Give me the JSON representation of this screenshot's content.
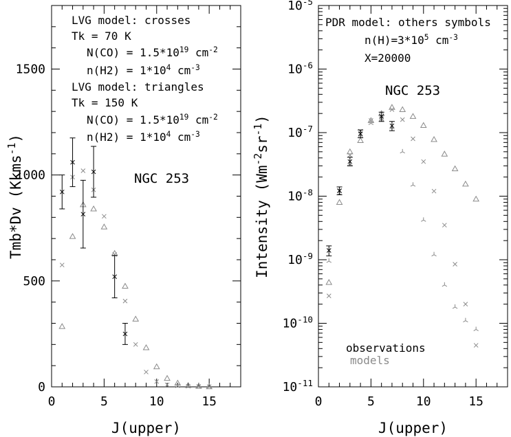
{
  "chart_data": [
    {
      "type": "scatter",
      "panel": "left",
      "xlabel": "J(upper)",
      "ylabel_main": "Tmb*Dv (Kkms",
      "ylabel_sup": "-1",
      "ylabel_end": ")",
      "xlim": [
        0,
        18
      ],
      "ylim": [
        0,
        1800
      ],
      "yscale": "linear",
      "xticks_major": [
        0,
        5,
        10,
        15
      ],
      "xticks_minor": [
        1,
        2,
        3,
        4,
        6,
        7,
        8,
        9,
        11,
        12,
        13,
        14,
        16,
        17
      ],
      "yticks_major": [
        0,
        500,
        1000,
        1500
      ],
      "yticks_minor": [
        100,
        200,
        300,
        400,
        600,
        700,
        800,
        900,
        1100,
        1200,
        1300,
        1400,
        1600,
        1700
      ],
      "xtick_labels": [
        "0",
        "5",
        "10",
        "15"
      ],
      "ytick_labels": [
        "0",
        "500",
        "1000",
        "1500"
      ],
      "annotations": [
        {
          "lines": [
            {
              "t": "LVG model: crosses"
            }
          ]
        },
        {
          "lines": [
            {
              "t": "Tk = 70 K"
            }
          ]
        },
        {
          "lines": [
            {
              "t": "N(CO) = 1.5*10"
            },
            {
              "t": "19",
              "sup": true
            },
            {
              "t": " cm"
            },
            {
              "t": "-2",
              "sup": true
            }
          ]
        },
        {
          "lines": [
            {
              "t": "n(H2) = 1*10"
            },
            {
              "t": "4",
              "sup": true
            },
            {
              "t": " cm"
            },
            {
              "t": "-3",
              "sup": true
            }
          ]
        },
        {
          "lines": [
            {
              "t": "LVG model: triangles"
            }
          ]
        },
        {
          "lines": [
            {
              "t": "Tk = 150 K"
            }
          ]
        },
        {
          "lines": [
            {
              "t": "N(CO) = 1.5*10"
            },
            {
              "t": "19",
              "sup": true
            },
            {
              "t": " cm"
            },
            {
              "t": "-2",
              "sup": true
            }
          ]
        },
        {
          "lines": [
            {
              "t": "n(H2) = 1*10"
            },
            {
              "t": "4",
              "sup": true
            },
            {
              "t": " cm"
            },
            {
              "t": "-3",
              "sup": true
            }
          ]
        }
      ],
      "source_label": "NGC 253",
      "observations": [
        {
          "x": 1,
          "y": 920,
          "err": 80
        },
        {
          "x": 2,
          "y": 1060,
          "err": 115
        },
        {
          "x": 3,
          "y": 815,
          "err": 160
        },
        {
          "x": 4,
          "y": 1015,
          "err": 120
        },
        {
          "x": 6,
          "y": 520,
          "err": 100
        },
        {
          "x": 7,
          "y": 250,
          "err": 50
        }
      ],
      "model_crosses": [
        {
          "x": 1,
          "y": 575
        },
        {
          "x": 2,
          "y": 990
        },
        {
          "x": 3,
          "y": 1020
        },
        {
          "x": 4,
          "y": 930
        },
        {
          "x": 5,
          "y": 805
        },
        {
          "x": 6,
          "y": 625
        },
        {
          "x": 7,
          "y": 405
        },
        {
          "x": 8,
          "y": 200
        },
        {
          "x": 9,
          "y": 70
        },
        {
          "x": 10,
          "y": 25
        },
        {
          "x": 11,
          "y": 10
        },
        {
          "x": 12,
          "y": 5
        },
        {
          "x": 13,
          "y": 3
        },
        {
          "x": 14,
          "y": 2
        },
        {
          "x": 15,
          "y": 1
        }
      ],
      "model_triangles": [
        {
          "x": 1,
          "y": 285
        },
        {
          "x": 2,
          "y": 710
        },
        {
          "x": 3,
          "y": 860
        },
        {
          "x": 4,
          "y": 840
        },
        {
          "x": 5,
          "y": 755
        },
        {
          "x": 6,
          "y": 630
        },
        {
          "x": 7,
          "y": 475
        },
        {
          "x": 8,
          "y": 320
        },
        {
          "x": 9,
          "y": 185
        },
        {
          "x": 10,
          "y": 95
        },
        {
          "x": 11,
          "y": 40
        },
        {
          "x": 12,
          "y": 18
        },
        {
          "x": 13,
          "y": 7
        },
        {
          "x": 14,
          "y": 3
        },
        {
          "x": 15,
          "y": 1
        }
      ]
    },
    {
      "type": "scatter",
      "panel": "right",
      "xlabel": "J(upper)",
      "ylabel_parts": [
        {
          "t": "Intensity (Wm"
        },
        {
          "t": "-2",
          "sup": true
        },
        {
          "t": "sr"
        },
        {
          "t": "-1",
          "sup": true
        },
        {
          "t": ")"
        }
      ],
      "xlim": [
        0,
        18
      ],
      "ylim": [
        1e-11,
        1e-05
      ],
      "yscale": "log",
      "xticks_major": [
        0,
        5,
        10,
        15
      ],
      "xticks_minor": [
        1,
        2,
        3,
        4,
        6,
        7,
        8,
        9,
        11,
        12,
        13,
        14,
        16,
        17
      ],
      "xtick_labels": [
        "0",
        "5",
        "10",
        "15"
      ],
      "ytick_labels": [
        {
          "base": "10",
          "exp": "-11"
        },
        {
          "base": "10",
          "exp": "-10"
        },
        {
          "base": "10",
          "exp": "-9"
        },
        {
          "base": "10",
          "exp": "-8"
        },
        {
          "base": "10",
          "exp": "-7"
        },
        {
          "base": "10",
          "exp": "-6"
        },
        {
          "base": "10",
          "exp": "-5"
        }
      ],
      "annotations": [
        {
          "lines": [
            {
              "t": "PDR model: others symbols"
            }
          ]
        },
        {
          "lines": [
            {
              "t": "n(H)=3*10"
            },
            {
              "t": "5",
              "sup": true
            },
            {
              "t": " cm"
            },
            {
              "t": "-3",
              "sup": true
            }
          ]
        },
        {
          "lines": [
            {
              "t": "X=20000"
            }
          ]
        }
      ],
      "source_label": "NGC 253",
      "legend_observations": "observations",
      "legend_models": "models",
      "legend_placement": "bottom-left",
      "observations": [
        {
          "x": 1,
          "y": 1.4e-09,
          "err_lo": 1.15e-09,
          "err_hi": 1.65e-09
        },
        {
          "x": 2,
          "y": 1.22e-08,
          "err_lo": 1.05e-08,
          "err_hi": 1.4e-08
        },
        {
          "x": 3,
          "y": 3.5e-08,
          "err_lo": 3e-08,
          "err_hi": 4.1e-08
        },
        {
          "x": 4,
          "y": 9.6e-08,
          "err_lo": 8.3e-08,
          "err_hi": 1.1e-07
        },
        {
          "x": 6,
          "y": 1.8e-07,
          "err_lo": 1.5e-07,
          "err_hi": 2.1e-07
        },
        {
          "x": 7,
          "y": 1.28e-07,
          "err_lo": 1.07e-07,
          "err_hi": 1.5e-07
        }
      ],
      "model_crosses": [
        {
          "x": 1,
          "y": 2.7e-10
        },
        {
          "x": 2,
          "y": 1.2e-08
        },
        {
          "x": 3,
          "y": 4.4e-08
        },
        {
          "x": 4,
          "y": 1.05e-07
        },
        {
          "x": 5,
          "y": 1.55e-07
        },
        {
          "x": 6,
          "y": 1.7e-07
        },
        {
          "x": 7,
          "y": 2.3e-07
        },
        {
          "x": 8,
          "y": 1.6e-07
        },
        {
          "x": 9,
          "y": 8e-08
        },
        {
          "x": 10,
          "y": 3.5e-08
        },
        {
          "x": 11,
          "y": 1.2e-08
        },
        {
          "x": 12,
          "y": 3.5e-09
        },
        {
          "x": 13,
          "y": 8.5e-10
        },
        {
          "x": 14,
          "y": 2e-10
        },
        {
          "x": 15,
          "y": 4.5e-11
        }
      ],
      "model_triangles": [
        {
          "x": 1,
          "y": 4.4e-10
        },
        {
          "x": 2,
          "y": 8e-09
        },
        {
          "x": 3,
          "y": 5e-08
        },
        {
          "x": 4,
          "y": 7.5e-08
        },
        {
          "x": 5,
          "y": 1.55e-07
        },
        {
          "x": 6,
          "y": 2e-07
        },
        {
          "x": 7,
          "y": 2.5e-07
        },
        {
          "x": 8,
          "y": 2.3e-07
        },
        {
          "x": 9,
          "y": 1.8e-07
        },
        {
          "x": 10,
          "y": 1.3e-07
        },
        {
          "x": 11,
          "y": 7.8e-08
        },
        {
          "x": 12,
          "y": 4.6e-08
        },
        {
          "x": 13,
          "y": 2.7e-08
        },
        {
          "x": 14,
          "y": 1.55e-08
        },
        {
          "x": 15,
          "y": 9e-09
        }
      ],
      "model_tripods": [
        {
          "x": 1,
          "y": 9.5e-10
        },
        {
          "x": 2,
          "y": 1.1e-08
        },
        {
          "x": 3,
          "y": 3.2e-08
        },
        {
          "x": 4,
          "y": 9e-08
        },
        {
          "x": 5,
          "y": 1.4e-07
        },
        {
          "x": 6,
          "y": 1.6e-07
        },
        {
          "x": 7,
          "y": 1.2e-07
        },
        {
          "x": 8,
          "y": 5e-08
        },
        {
          "x": 9,
          "y": 1.5e-08
        },
        {
          "x": 10,
          "y": 4.2e-09
        },
        {
          "x": 11,
          "y": 1.2e-09
        },
        {
          "x": 12,
          "y": 4e-10
        },
        {
          "x": 13,
          "y": 1.8e-10
        },
        {
          "x": 14,
          "y": 1.1e-10
        },
        {
          "x": 15,
          "y": 8e-11
        }
      ]
    }
  ]
}
